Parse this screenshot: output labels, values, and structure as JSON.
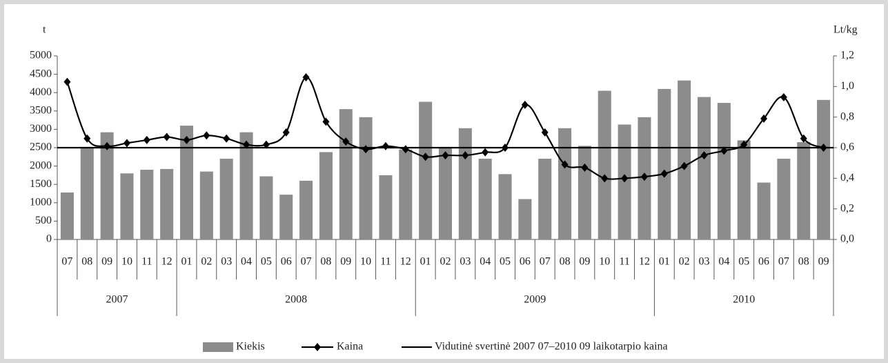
{
  "chart_data": {
    "type": "bar-line",
    "y_label": "t",
    "y2_label": "Lt/kg",
    "categories": [
      "07",
      "08",
      "09",
      "10",
      "11",
      "12",
      "01",
      "02",
      "03",
      "04",
      "05",
      "06",
      "07",
      "08",
      "09",
      "10",
      "11",
      "12",
      "01",
      "02",
      "03",
      "04",
      "05",
      "06",
      "07",
      "08",
      "09",
      "10",
      "11",
      "12",
      "01",
      "02",
      "03",
      "04",
      "05",
      "06",
      "07",
      "08",
      "09"
    ],
    "years": [
      "2007",
      "2008",
      "2009",
      "2010"
    ],
    "series": [
      {
        "name": "Kiekis",
        "type": "bar",
        "color": "#8c8c8c",
        "values": [
          1280,
          2500,
          2920,
          1800,
          1900,
          1920,
          3100,
          1850,
          2200,
          2920,
          1720,
          1220,
          1600,
          2380,
          3550,
          3330,
          1750,
          2450,
          3750,
          2500,
          3030,
          2200,
          1780,
          1100,
          2200,
          3030,
          2550,
          4050,
          3130,
          3330,
          4100,
          4330,
          3880,
          3720,
          2700,
          1550,
          2200,
          2650,
          3800
        ]
      },
      {
        "name": "Kaina",
        "type": "line",
        "axis": "y2",
        "color": "#000000",
        "values": [
          1.03,
          0.66,
          0.61,
          0.63,
          0.65,
          0.67,
          0.65,
          0.68,
          0.66,
          0.62,
          0.62,
          0.7,
          1.06,
          0.77,
          0.64,
          0.59,
          0.61,
          0.59,
          0.54,
          0.55,
          0.55,
          0.57,
          0.6,
          0.88,
          0.7,
          0.49,
          0.47,
          0.4,
          0.4,
          0.41,
          0.43,
          0.48,
          0.55,
          0.58,
          0.62,
          0.79,
          0.93,
          0.66,
          0.6
        ]
      }
    ],
    "average": {
      "name": "Vidutinė svertinė 2007 07–2010 09 laikotarpio kaina",
      "value": 0.6,
      "axis": "y2",
      "color": "#000000"
    },
    "ylim": [
      0,
      5000
    ],
    "yticks": [
      0,
      500,
      1000,
      1500,
      2000,
      2500,
      3000,
      3500,
      4000,
      4500,
      5000
    ],
    "y2lim": [
      0,
      1.2
    ],
    "y2ticks": [
      {
        "value": 0,
        "label": "0,0"
      },
      {
        "value": 0.2,
        "label": "0,2"
      },
      {
        "value": 0.4,
        "label": "0,4"
      },
      {
        "value": 0.6,
        "label": "0,6"
      },
      {
        "value": 0.8,
        "label": "0,8"
      },
      {
        "value": 1,
        "label": "1,0"
      },
      {
        "value": 1.2,
        "label": "1,2"
      }
    ]
  }
}
